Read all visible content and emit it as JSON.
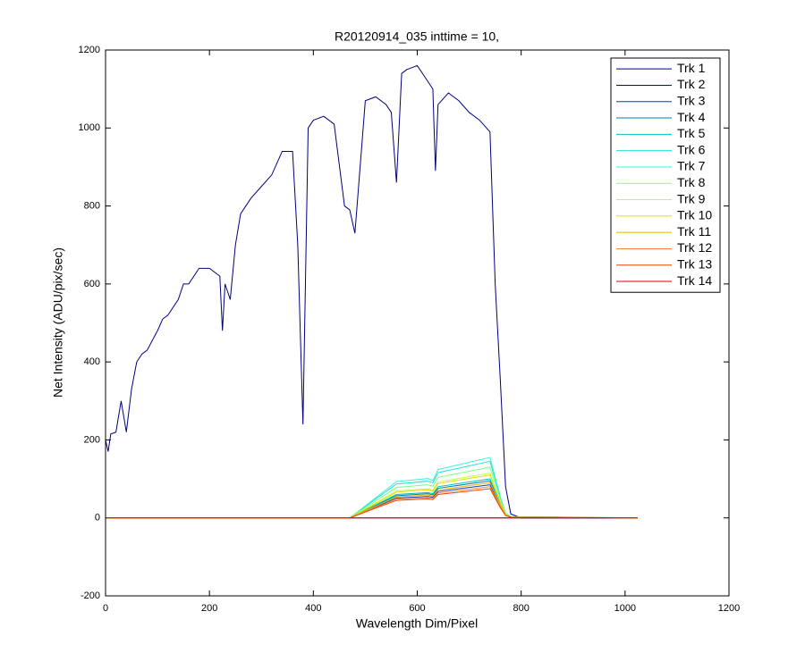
{
  "chart_data": {
    "type": "line",
    "title": "R20120914_035 inttime = 10,",
    "x_label": "Wavelength Dim/Pixel",
    "y_label": "Net Intensity (ADU/pix/sec)",
    "xlim": [
      0,
      1200
    ],
    "xticks": [
      0,
      200,
      400,
      600,
      800,
      1000,
      1200
    ],
    "ylim": [
      -200,
      1200
    ],
    "yticks": [
      -200,
      0,
      200,
      400,
      600,
      800,
      1000,
      1200
    ],
    "grid": false,
    "legend": "upper right",
    "series": [
      {
        "name": "Trk 1",
        "color": "#000080",
        "x": [
          0,
          5,
          10,
          20,
          30,
          40,
          50,
          60,
          70,
          80,
          100,
          110,
          120,
          140,
          150,
          160,
          180,
          200,
          220,
          225,
          230,
          240,
          250,
          260,
          280,
          300,
          320,
          340,
          360,
          370,
          375,
          380,
          390,
          400,
          420,
          440,
          460,
          470,
          480,
          490,
          500,
          520,
          540,
          550,
          560,
          570,
          580,
          600,
          620,
          630,
          635,
          640,
          660,
          680,
          700,
          720,
          740,
          750,
          760,
          770,
          780,
          800,
          850,
          900,
          950,
          1000,
          1024
        ],
        "values": [
          200,
          170,
          215,
          220,
          300,
          220,
          330,
          400,
          420,
          430,
          480,
          510,
          520,
          560,
          600,
          600,
          640,
          640,
          620,
          480,
          600,
          560,
          700,
          780,
          820,
          850,
          880,
          940,
          940,
          700,
          470,
          240,
          1000,
          1020,
          1030,
          1010,
          800,
          790,
          730,
          900,
          1070,
          1080,
          1060,
          1040,
          860,
          1140,
          1150,
          1160,
          1120,
          1100,
          890,
          1060,
          1090,
          1070,
          1040,
          1020,
          990,
          600,
          350,
          80,
          10,
          0,
          0,
          0,
          0,
          0,
          0
        ]
      },
      {
        "name": "Trk 2",
        "color": "#0000c0",
        "x": [
          0,
          1024
        ],
        "values": [
          0,
          0
        ]
      },
      {
        "name": "Trk 3",
        "color": "#0040c0",
        "x": [
          0,
          470,
          560,
          620,
          630,
          640,
          740,
          760,
          770,
          780,
          1024
        ],
        "values": [
          0,
          0,
          51,
          55,
          53,
          68,
          85,
          30,
          7,
          2,
          0
        ]
      },
      {
        "name": "Trk 4",
        "color": "#0080a0",
        "x": [
          0,
          470,
          560,
          620,
          630,
          640,
          740,
          760,
          770,
          780,
          1024
        ],
        "values": [
          0,
          0,
          57,
          62,
          59,
          76,
          95,
          33,
          8,
          2,
          0
        ]
      },
      {
        "name": "Trk 5",
        "color": "#00c0c0",
        "x": [
          0,
          470,
          560,
          620,
          630,
          640,
          740,
          760,
          770,
          780,
          1024
        ],
        "values": [
          0,
          0,
          60,
          65,
          62,
          80,
          100,
          35,
          8,
          2,
          0
        ]
      },
      {
        "name": "Trk 6",
        "color": "#20e0e0",
        "x": [
          0,
          470,
          560,
          620,
          630,
          640,
          740,
          760,
          770,
          780,
          1024
        ],
        "values": [
          0,
          0,
          87,
          94,
          90,
          116,
          145,
          51,
          12,
          3,
          0
        ]
      },
      {
        "name": "Trk 7",
        "color": "#40f0d0",
        "x": [
          0,
          470,
          560,
          620,
          630,
          640,
          740,
          760,
          770,
          780,
          1024
        ],
        "values": [
          0,
          0,
          93,
          101,
          96,
          124,
          155,
          54,
          12,
          3,
          0
        ]
      },
      {
        "name": "Trk 8",
        "color": "#80ff80",
        "x": [
          0,
          470,
          560,
          620,
          630,
          640,
          740,
          760,
          770,
          780,
          1024
        ],
        "values": [
          0,
          0,
          78,
          85,
          81,
          104,
          130,
          46,
          10,
          3,
          0
        ]
      },
      {
        "name": "Trk 9",
        "color": "#c0ff40",
        "x": [
          0,
          470,
          560,
          620,
          630,
          640,
          740,
          760,
          770,
          780,
          1024
        ],
        "values": [
          0,
          0,
          69,
          75,
          71,
          92,
          115,
          40,
          9,
          2,
          0
        ]
      },
      {
        "name": "Trk 10",
        "color": "#e0e000",
        "x": [
          0,
          470,
          560,
          620,
          630,
          640,
          740,
          760,
          770,
          780,
          1024
        ],
        "values": [
          0,
          0,
          66,
          72,
          68,
          88,
          110,
          39,
          9,
          2,
          0
        ]
      },
      {
        "name": "Trk 11",
        "color": "#f0b000",
        "x": [
          0,
          470,
          560,
          620,
          630,
          640,
          740,
          760,
          770,
          780,
          1024
        ],
        "values": [
          0,
          0,
          54,
          59,
          56,
          72,
          90,
          32,
          7,
          2,
          0
        ]
      },
      {
        "name": "Trk 12",
        "color": "#ff8040",
        "x": [
          0,
          470,
          560,
          620,
          630,
          640,
          740,
          760,
          770,
          780,
          1024
        ],
        "values": [
          0,
          0,
          48,
          52,
          50,
          64,
          80,
          28,
          6,
          2,
          0
        ]
      },
      {
        "name": "Trk 13",
        "color": "#f04000",
        "x": [
          0,
          470,
          560,
          620,
          630,
          640,
          740,
          760,
          770,
          780,
          1024
        ],
        "values": [
          0,
          0,
          45,
          49,
          47,
          60,
          75,
          26,
          6,
          2,
          0
        ]
      },
      {
        "name": "Trk 14",
        "color": "#e00000",
        "x": [
          0,
          1024
        ],
        "values": [
          0,
          0
        ]
      }
    ]
  }
}
